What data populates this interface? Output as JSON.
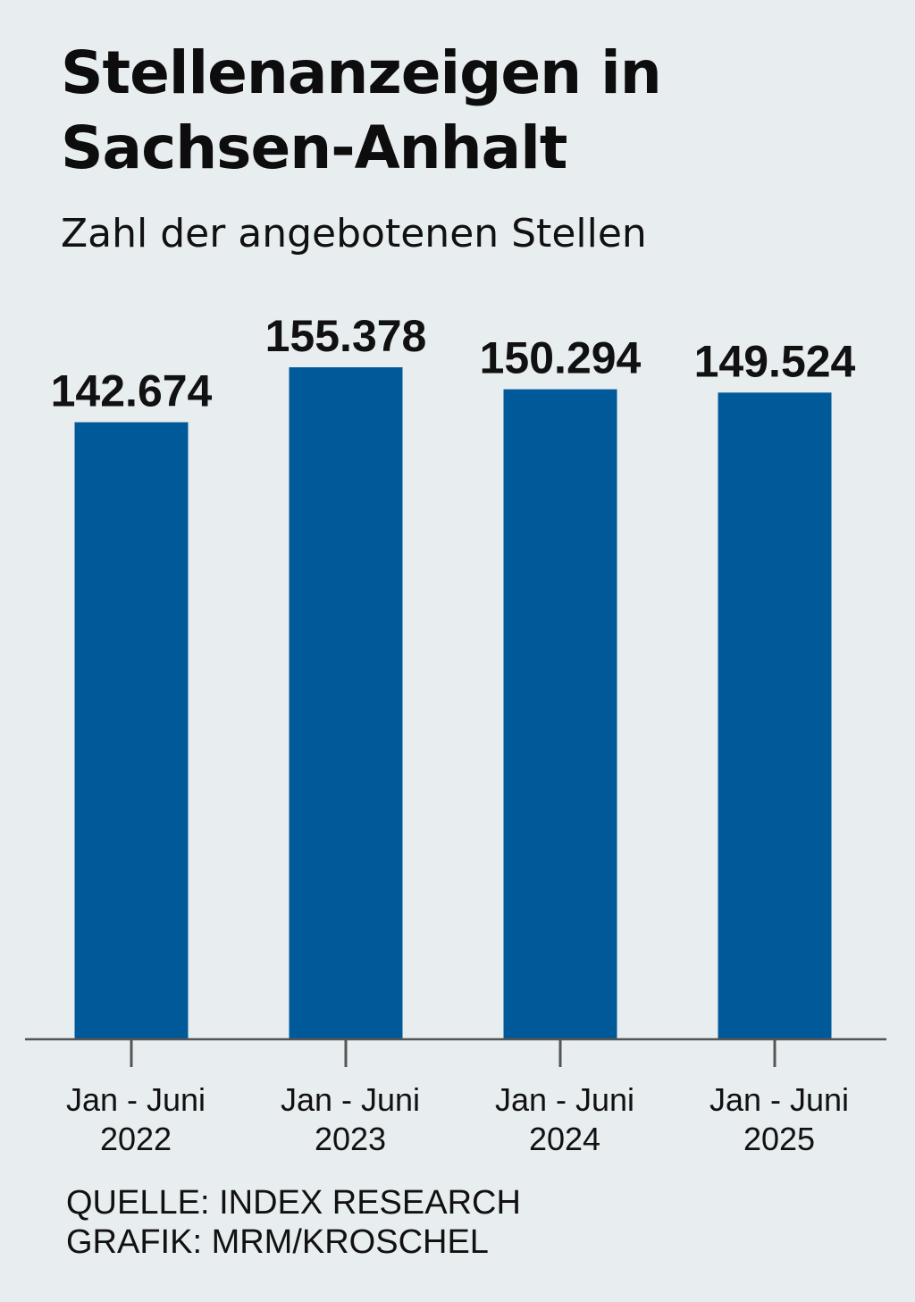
{
  "header": {
    "title_line1": "Stellenanzeigen in",
    "title_line2": "Sachsen-Anhalt",
    "subtitle": "Zahl der angebotenen Stellen"
  },
  "chart_data": {
    "type": "bar",
    "title": "Stellenanzeigen in Sachsen-Anhalt",
    "subtitle": "Zahl der angebotenen Stellen",
    "categories": [
      [
        "Jan - Juni",
        "2022"
      ],
      [
        "Jan - Juni",
        "2023"
      ],
      [
        "Jan - Juni",
        "2024"
      ],
      [
        "Jan - Juni",
        "2025"
      ]
    ],
    "values": [
      142674,
      155378,
      150294,
      149524
    ],
    "value_labels": [
      "142.674",
      "155.378",
      "150.294",
      "149.524"
    ],
    "xlabel": "",
    "ylabel": "",
    "ylim": [
      0,
      155378
    ],
    "grid": false,
    "legend": "none",
    "bar_color": "#005a9a",
    "axis_color": "#555555"
  },
  "footer": {
    "source": "QUELLE: INDEX RESEARCH",
    "credit": "GRAFIK: MRM/KROSCHEL"
  },
  "colors": {
    "background": "#e8edf0",
    "bar": "#005a9a",
    "text": "#111111"
  }
}
